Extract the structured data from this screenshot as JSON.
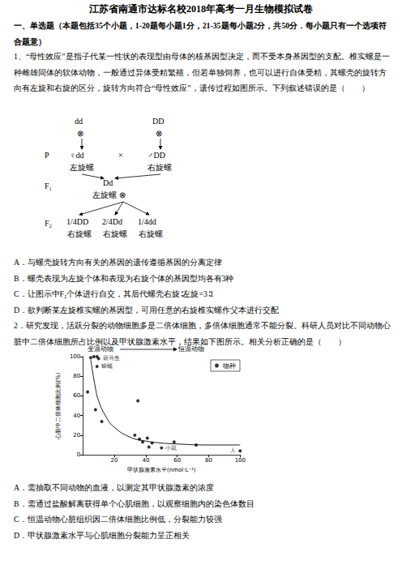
{
  "header": {
    "title": "江苏省南通市达标名校2018年高考一月生物模拟试卷"
  },
  "section": "一、单选题（本题包括35个小题，1-20题每小题1分，21-35题每小题2分，共50分．每小题只有一个选项符合题意）",
  "questions": [
    {
      "stem": "1、“母性效应”是指子代某一性状的表现型由母体的核基因型决定，而不受本身基因型的支配。椎实螺是一种雌雄同体的软体动物，一般通过异体受精繁殖，但若单独饲养，也可以进行自体受精，其螺壳的旋转方向有左旋和右旋的区分，旋转方向符合“母性效应”，遗传过程如图所示。下列叙述错误的是（　　）",
      "figure": {
        "self": "⊗",
        "top": [
          "dd",
          "DD"
        ],
        "p": {
          "label": "P",
          "female": "♀dd",
          "cross": "×",
          "male": "♂DD",
          "phenotypes": [
            "左旋螺",
            "右旋螺"
          ]
        },
        "f1": {
          "label": "F₁",
          "genotype": "Dd",
          "phenotype": "左旋螺"
        },
        "f2": {
          "label": "F₂",
          "genotypes": [
            "1/4DD",
            "2/4Dd",
            "1/4dd"
          ],
          "phenotypes": [
            "右旋螺",
            "右旋螺",
            "右旋螺"
          ]
        }
      },
      "options": [
        "A．与螺壳旋转方向有关的基因的遗传遵循基因的分离定律",
        "B．螺壳表现为左旋个体和表现为右旋个体的基因型均各有3种",
        "C．让图示中F₂个体进行自交，其后代螺壳右旋∶左旋=3∶1",
        "D．欲判断某左旋椎实螺的基因型，可用任意的右旋椎实螺作父本进行交配"
      ]
    },
    {
      "stem": "2．研究发现，活跃分裂的动物细胞多是二倍体细胞，多倍体细胞通常不能分裂。科研人员对比不同动物心脏中二倍体细胞所占比例以及甲状腺激素水平，结果如下图所示。相关分析正确的是（　　）",
      "options": [
        "A．需抽取不同动物的血液，以测定其甲状腺激素的浓度",
        "B．需通过盐酸解离获得单个心肌细胞，以观察细胞内的染色体数目",
        "C．恒温动物心脏组织因二倍体细胞比例低，分裂能力较强",
        "D．甲状腺激素水平与心肌细胞分裂能力呈正相关"
      ]
    }
  ],
  "chart_data": {
    "type": "scatter",
    "annotations": [
      "变温动物",
      "恒温动物"
    ],
    "x_label": "甲状腺激素水平(nmol·L⁻¹)",
    "y_label": "心脏中二倍体细胞比例(%)",
    "xlim": [
      0,
      100
    ],
    "xticks": [
      20,
      40,
      60,
      80,
      100
    ],
    "ylim": [
      0,
      100
    ],
    "yticks": [
      0,
      20,
      40,
      60,
      80,
      100
    ],
    "grid": false,
    "legend": "upper right",
    "series": [
      {
        "name": "物种",
        "type": "scatter",
        "color": "#000000",
        "marker": "circle",
        "x": [
          5,
          7,
          9,
          10,
          9,
          3,
          8,
          12,
          35,
          33,
          36,
          38,
          41,
          42,
          44,
          50,
          58,
          72,
          100
        ],
        "values": [
          99,
          100,
          100,
          98,
          90,
          64,
          46,
          34,
          55,
          20,
          16,
          13,
          17,
          8,
          12,
          7,
          13,
          10,
          4
        ],
        "labels": [
          null,
          null,
          null,
          "斑马鱼",
          "蝾螈",
          null,
          null,
          null,
          null,
          null,
          null,
          null,
          null,
          null,
          null,
          "小鼠",
          null,
          null,
          "人"
        ]
      },
      {
        "type": "line",
        "color": "#000000",
        "line_style": "solid",
        "x": [
          5,
          8,
          10,
          15,
          20,
          30,
          40,
          50,
          60,
          80,
          100
        ],
        "values": [
          97,
          68,
          55,
          38,
          28,
          18,
          14,
          12,
          11,
          10,
          10
        ]
      }
    ]
  }
}
